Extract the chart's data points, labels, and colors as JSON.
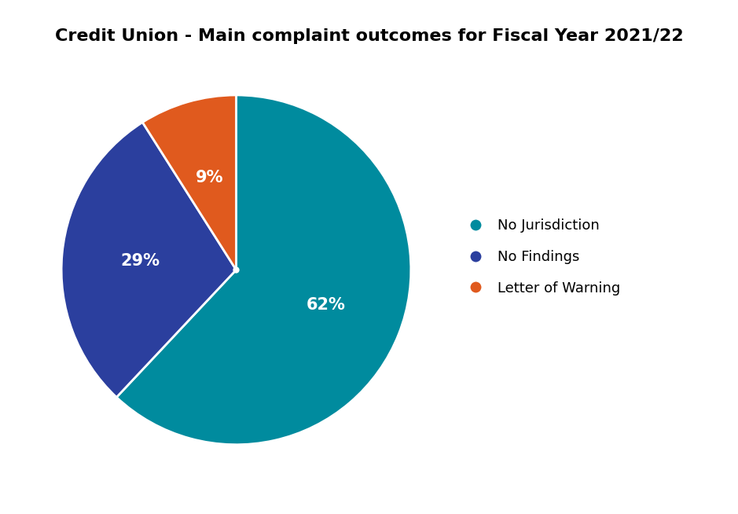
{
  "title": "Credit Union - Main complaint outcomes for Fiscal Year 2021/22",
  "slices": [
    62,
    29,
    9
  ],
  "labels": [
    "No Jurisdiction",
    "No Findings",
    "Letter of Warning"
  ],
  "colors": [
    "#008B9E",
    "#2B3F9E",
    "#E05A1E"
  ],
  "pct_labels": [
    "62%",
    "29%",
    "9%"
  ],
  "startangle": 90,
  "background_color": "#ffffff",
  "title_fontsize": 16,
  "pct_fontsize": 15,
  "legend_fontsize": 13
}
